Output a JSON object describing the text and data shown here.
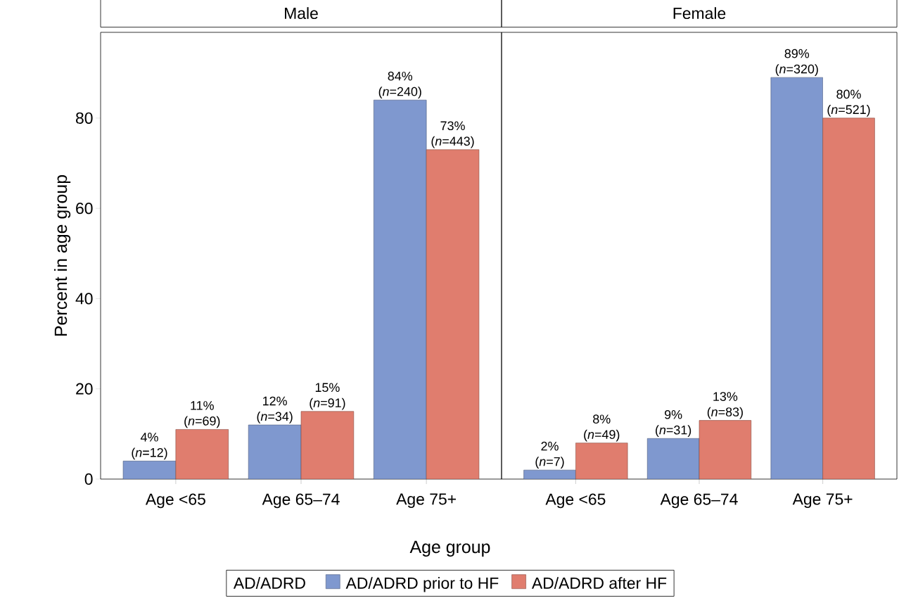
{
  "chart_data": [
    {
      "type": "bar",
      "title": "Male",
      "xlabel": "Age group",
      "ylabel": "Percent in age group",
      "legend_title": "AD/ADRD",
      "legend": "bottom",
      "categories": [
        "Age <65",
        "Age 65–74",
        "Age 75+"
      ],
      "ylim": [
        0,
        99
      ],
      "yticks": [
        0,
        20,
        40,
        60,
        80
      ],
      "series": [
        {
          "name": "AD/ADRD prior to HF",
          "color": "#7f98cf",
          "values": [
            4,
            12,
            84
          ],
          "value_labels": [
            "4% (*n*=12)",
            "12% (*n*=34)",
            "84% (*n*=240)"
          ]
        },
        {
          "name": "AD/ADRD after HF",
          "color": "#e07d6e",
          "values": [
            11,
            15,
            73
          ],
          "value_labels": [
            "11% (*n*=69)",
            "15% (*n*=91)",
            "73% (*n*=443)"
          ]
        }
      ]
    },
    {
      "type": "bar",
      "title": "Female",
      "tick_labels": "x",
      "categories": [
        "Age <65",
        "Age 65–74",
        "Age 75+"
      ],
      "ylim": [
        0,
        99
      ],
      "yticks": [
        0,
        20,
        40,
        60,
        80
      ],
      "series": [
        {
          "color": "#7f98cf",
          "values": [
            2,
            9,
            89
          ],
          "value_labels": [
            "2% (*n*=7)",
            "9% (*n*=31)",
            "89% (*n*=320)"
          ]
        },
        {
          "color": "#e07d6e",
          "values": [
            8,
            13,
            80
          ],
          "value_labels": [
            "8% (*n*=49)",
            "13% (*n*=83)",
            "80% (*n*=521)"
          ]
        }
      ]
    }
  ]
}
